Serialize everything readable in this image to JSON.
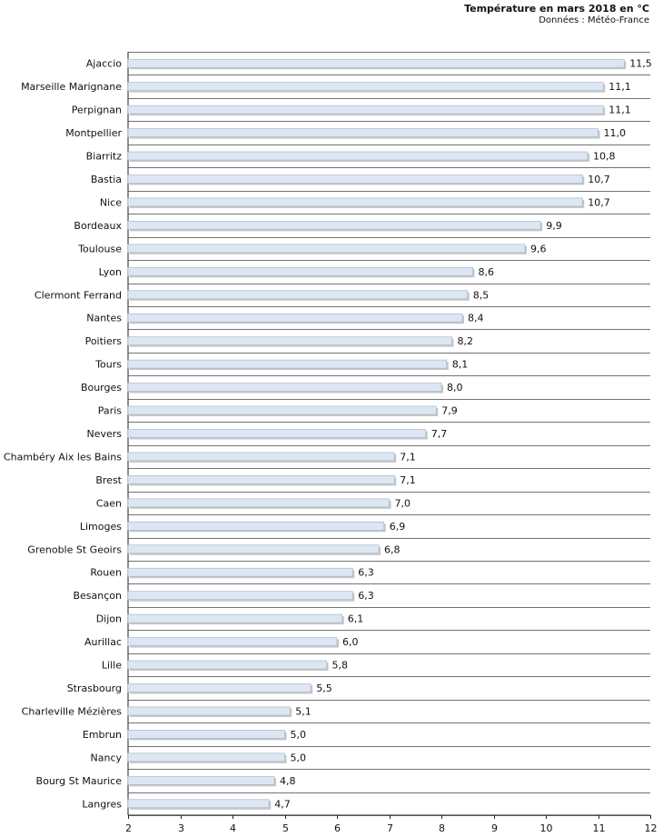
{
  "chart_data": {
    "type": "bar",
    "orientation": "horizontal",
    "title": "Température en mars 2018 en °C",
    "subtitle": "Données : Météo-France",
    "xlabel": "",
    "ylabel": "",
    "xlim": [
      2,
      12
    ],
    "xticks": [
      "2",
      "3",
      "4",
      "5",
      "6",
      "7",
      "8",
      "9",
      "10",
      "11",
      "12"
    ],
    "grid": "horizontal",
    "categories": [
      "Ajaccio",
      "Marseille Marignane",
      "Perpignan",
      "Montpellier",
      "Biarritz",
      "Bastia",
      "Nice",
      "Bordeaux",
      "Toulouse",
      "Lyon",
      "Clermont Ferrand",
      "Nantes",
      "Poitiers",
      "Tours",
      "Bourges",
      "Paris",
      "Nevers",
      "Chambéry Aix les Bains",
      "Brest",
      "Caen",
      "Limoges",
      "Grenoble St Geoirs",
      "Rouen",
      "Besançon",
      "Dijon",
      "Aurillac",
      "Lille",
      "Strasbourg",
      "Charleville Mézières",
      "Embrun",
      "Nancy",
      "Bourg St Maurice",
      "Langres"
    ],
    "values": [
      11.5,
      11.1,
      11.1,
      11.0,
      10.8,
      10.7,
      10.7,
      9.9,
      9.6,
      8.6,
      8.5,
      8.4,
      8.2,
      8.1,
      8.0,
      7.9,
      7.7,
      7.1,
      7.1,
      7.0,
      6.9,
      6.8,
      6.3,
      6.3,
      6.1,
      6.0,
      5.8,
      5.5,
      5.1,
      5.0,
      5.0,
      4.8,
      4.7
    ],
    "value_labels": [
      "11,5",
      "11,1",
      "11,1",
      "11,0",
      "10,8",
      "10,7",
      "10,7",
      "9,9",
      "9,6",
      "8,6",
      "8,5",
      "8,4",
      "8,2",
      "8,1",
      "8,0",
      "7,9",
      "7,7",
      "7,1",
      "7,1",
      "7,0",
      "6,9",
      "6,8",
      "6,3",
      "6,3",
      "6,1",
      "6,0",
      "5,8",
      "5,5",
      "5,1",
      "5,0",
      "5,0",
      "4,8",
      "4,7"
    ],
    "colors": {
      "bar": "#dce7f3",
      "bar_border": "#aab8c8",
      "bar_shadow": "#c7c7c7",
      "grid": "#444444",
      "axis": "#222222",
      "text": "#111111"
    }
  }
}
